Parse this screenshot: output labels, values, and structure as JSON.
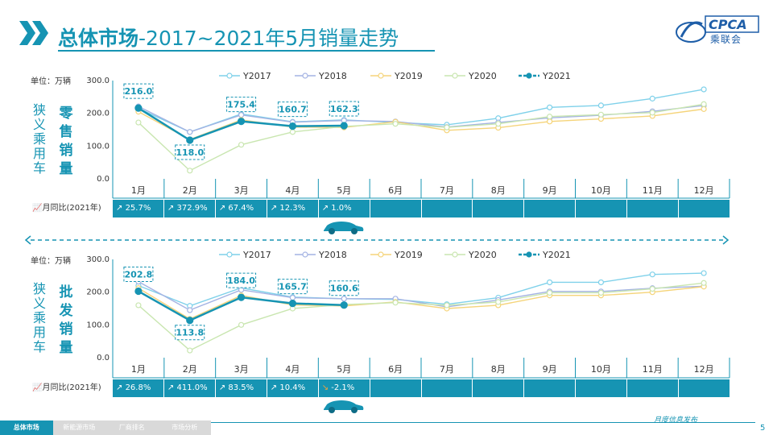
{
  "page": {
    "title_bold": "总体市场",
    "title_rest": "-2017~2021年5月销量走势",
    "logo_text": "CPCA",
    "logo_cn": "乘联会",
    "page_number": "5",
    "footer_brand": "月度信息发布",
    "footer_tabs": [
      "总体市场",
      "新能源市场",
      "厂商排名",
      "市场分析"
    ],
    "accent": "#1694b3"
  },
  "chart_data": [
    {
      "type": "line",
      "section": "retail",
      "unit": "单位：万辆",
      "side_label": "狭义乘用车",
      "side_label_bold": "零售销量",
      "categories": [
        "1月",
        "2月",
        "3月",
        "4月",
        "5月",
        "6月",
        "7月",
        "8月",
        "9月",
        "10月",
        "11月",
        "12月"
      ],
      "ylim": [
        0,
        300
      ],
      "yticks": [
        "0.0",
        "100.0",
        "200.0",
        "300.0"
      ],
      "legend_position": "top",
      "series": [
        {
          "name": "Y2017",
          "color": "#7fd1ea",
          "values": [
            215,
            143,
            198,
            174,
            180,
            172,
            165,
            185,
            218,
            224,
            245,
            273
          ]
        },
        {
          "name": "Y2018",
          "color": "#a4b3e3",
          "values": [
            221,
            143,
            195,
            173,
            178,
            175,
            158,
            172,
            186,
            194,
            206,
            224
          ]
        },
        {
          "name": "Y2019",
          "color": "#f5d47a",
          "values": [
            205,
            120,
            180,
            158,
            157,
            174,
            148,
            156,
            175,
            183,
            192,
            213
          ]
        },
        {
          "name": "Y2020",
          "color": "#c9e6b0",
          "values": [
            172,
            25,
            104,
            143,
            160,
            168,
            157,
            168,
            190,
            196,
            202,
            228
          ]
        },
        {
          "name": "Y2021",
          "color": "#1694b3",
          "values": [
            216.0,
            118.0,
            175.4,
            160.7,
            162.3,
            null,
            null,
            null,
            null,
            null,
            null,
            null
          ]
        }
      ],
      "data_labels": [
        "216.0",
        "118.0",
        "175.4",
        "160.7",
        "162.3"
      ],
      "yoy_label": "月同比(2021年)",
      "yoy": [
        "25.7%",
        "372.9%",
        "67.4%",
        "12.3%",
        "1.0%",
        "",
        "",
        "",
        "",
        "",
        "",
        ""
      ],
      "yoy_trend": [
        "up",
        "up",
        "up",
        "up",
        "up"
      ]
    },
    {
      "type": "line",
      "section": "wholesale",
      "unit": "单位：万辆",
      "side_label": "狭义乘用车",
      "side_label_bold": "批发销量",
      "categories": [
        "1月",
        "2月",
        "3月",
        "4月",
        "5月",
        "6月",
        "7月",
        "8月",
        "9月",
        "10月",
        "11月",
        "12月"
      ],
      "ylim": [
        0,
        300
      ],
      "yticks": [
        "0.0",
        "100.0",
        "200.0",
        "300.0"
      ],
      "legend_position": "top",
      "series": [
        {
          "name": "Y2017",
          "color": "#7fd1ea",
          "values": [
            220,
            158,
            213,
            185,
            180,
            178,
            163,
            183,
            230,
            230,
            254,
            258
          ]
        },
        {
          "name": "Y2018",
          "color": "#a4b3e3",
          "values": [
            232,
            145,
            207,
            183,
            180,
            180,
            155,
            176,
            202,
            202,
            212,
            218
          ]
        },
        {
          "name": "Y2019",
          "color": "#f5d47a",
          "values": [
            212,
            118,
            190,
            161,
            158,
            170,
            150,
            160,
            190,
            190,
            200,
            217
          ]
        },
        {
          "name": "Y2020",
          "color": "#c9e6b0",
          "values": [
            160,
            22,
            100,
            150,
            162,
            168,
            160,
            170,
            198,
            198,
            210,
            228
          ]
        },
        {
          "name": "Y2021",
          "color": "#1694b3",
          "values": [
            202.8,
            113.8,
            184.0,
            165.7,
            160.6,
            null,
            null,
            null,
            null,
            null,
            null,
            null
          ]
        }
      ],
      "data_labels": [
        "202.8",
        "113.8",
        "184.0",
        "165.7",
        "160.6"
      ],
      "yoy_label": "月同比(2021年)",
      "yoy": [
        "26.8%",
        "411.0%",
        "83.5%",
        "10.4%",
        "-2.1%",
        "",
        "",
        "",
        "",
        "",
        "",
        ""
      ],
      "yoy_trend": [
        "up",
        "up",
        "up",
        "up",
        "down"
      ]
    }
  ]
}
